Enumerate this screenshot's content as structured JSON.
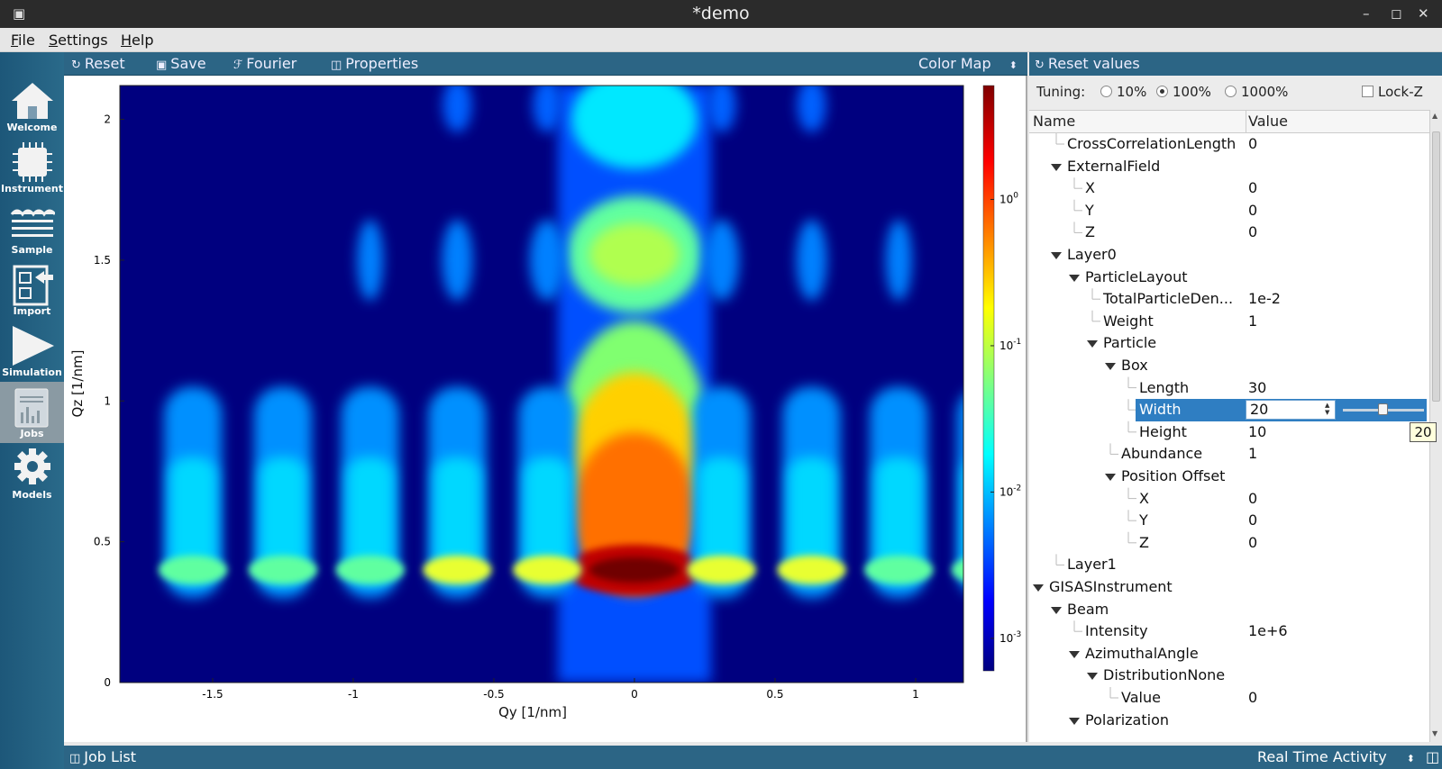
{
  "window": {
    "title": "*demo",
    "sys_buttons": [
      "–",
      "◻",
      "✕"
    ]
  },
  "menu": {
    "file": "File",
    "settings": "Settings",
    "help": "Help"
  },
  "sidebar": {
    "items": [
      {
        "label": "Welcome",
        "icon": "home-icon"
      },
      {
        "label": "Instrument",
        "icon": "chip-icon"
      },
      {
        "label": "Sample",
        "icon": "layers-icon"
      },
      {
        "label": "Import",
        "icon": "import-icon"
      },
      {
        "label": "Simulation",
        "icon": "play-icon"
      },
      {
        "label": "Jobs",
        "icon": "jobs-icon"
      },
      {
        "label": "Models",
        "icon": "gear-icon"
      }
    ],
    "active": "Jobs"
  },
  "toolbar": {
    "reset": "Reset",
    "save": "Save",
    "fourier": "Fourier",
    "properties": "Properties",
    "colormap": "Color Map"
  },
  "right_toolbar": {
    "reset_values": "Reset values"
  },
  "tuning": {
    "label": "Tuning:",
    "options": [
      "10%",
      "100%",
      "1000%"
    ],
    "selected": "100%",
    "lockz": "Lock-Z"
  },
  "tree": {
    "col_name": "Name",
    "col_value": "Value",
    "rows": [
      {
        "name": "CrossCorrelationLength",
        "value": "0"
      },
      {
        "name": "ExternalField",
        "value": ""
      },
      {
        "name": "X",
        "value": "0"
      },
      {
        "name": "Y",
        "value": "0"
      },
      {
        "name": "Z",
        "value": "0"
      },
      {
        "name": "Layer0",
        "value": ""
      },
      {
        "name": "ParticleLayout",
        "value": ""
      },
      {
        "name": "TotalParticleDen...",
        "value": "1e-2"
      },
      {
        "name": "Weight",
        "value": "1"
      },
      {
        "name": "Particle",
        "value": ""
      },
      {
        "name": "Box",
        "value": ""
      },
      {
        "name": "Length",
        "value": "30"
      },
      {
        "name": "Width",
        "value": "20"
      },
      {
        "name": "Height",
        "value": "10"
      },
      {
        "name": "Abundance",
        "value": "1"
      },
      {
        "name": "Position Offset",
        "value": ""
      },
      {
        "name": "X",
        "value": "0"
      },
      {
        "name": "Y",
        "value": "0"
      },
      {
        "name": "Z",
        "value": "0"
      },
      {
        "name": "Layer1",
        "value": ""
      },
      {
        "name": "GISASInstrument",
        "value": ""
      },
      {
        "name": "Beam",
        "value": ""
      },
      {
        "name": "Intensity",
        "value": "1e+6"
      },
      {
        "name": "AzimuthalAngle",
        "value": ""
      },
      {
        "name": "DistributionNone",
        "value": ""
      },
      {
        "name": "Value",
        "value": "0"
      },
      {
        "name": "Polarization",
        "value": ""
      }
    ],
    "slider_value": 0.5,
    "tooltip": "20"
  },
  "status": {
    "job_list": "Job List",
    "activity": "Real Time Activity"
  },
  "chart_data": {
    "type": "heatmap",
    "xlabel": "Qy [1/nm]",
    "ylabel": "Qz [1/nm]",
    "xticks": [
      "-1.5",
      "-1",
      "-0.5",
      "0",
      "0.5",
      "1"
    ],
    "yticks": [
      "0",
      "0.5",
      "1",
      "1.5",
      "2"
    ],
    "xlim": [
      -1.83,
      1.17
    ],
    "ylim": [
      0,
      2.12
    ],
    "colorbar_ticks": [
      "10",
      "10",
      "10",
      "10"
    ],
    "colorbar_exponents": [
      "0",
      "-1",
      "-2",
      "-3"
    ],
    "colorbar_range": [
      0.0006,
      6
    ],
    "colormap": "jet",
    "log_scale": true
  }
}
